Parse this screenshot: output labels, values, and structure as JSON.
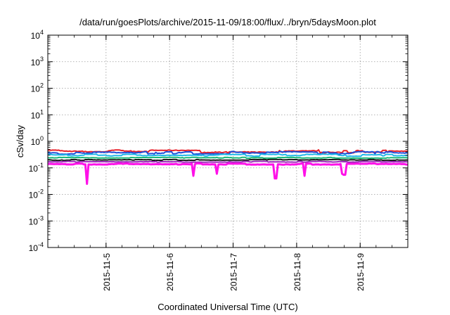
{
  "chart_data": {
    "type": "line",
    "title": "/data/run/goesPlots/archive/2015-11-09/18:00/flux/../bryn/5daysMoon.plot",
    "xlabel": "Coordinated Universal Time (UTC)",
    "ylabel": "cSv/day",
    "x_range": [
      "2015-11-04 02:00",
      "2015-11-09 18:00"
    ],
    "x_ticks": [
      "2015-11-5",
      "2015-11-6",
      "2015-11-7",
      "2015-11-8",
      "2015-11-9"
    ],
    "y_scale": "log",
    "ylim": [
      0.0001,
      10000
    ],
    "y_ticks": [
      {
        "base": "10",
        "exp": "-4"
      },
      {
        "base": "10",
        "exp": "-3"
      },
      {
        "base": "10",
        "exp": "-2"
      },
      {
        "base": "10",
        "exp": "-1"
      },
      {
        "base": "10",
        "exp": "0"
      },
      {
        "base": "10",
        "exp": "1"
      },
      {
        "base": "10",
        "exp": "2"
      },
      {
        "base": "10",
        "exp": "3"
      },
      {
        "base": "10",
        "exp": "4"
      }
    ],
    "grid": true,
    "series": [
      {
        "color": "#e8202a",
        "level": 0.42,
        "var": 0.12,
        "dips": [],
        "width": 2
      },
      {
        "color": "#1f4fd8",
        "level": 0.37,
        "var": 0.11,
        "dips": [],
        "width": 2
      },
      {
        "color": "#20b8e8",
        "level": 0.3,
        "var": 0.08,
        "dips": [],
        "width": 2
      },
      {
        "color": "#18b878",
        "level": 0.24,
        "var": 0.04,
        "dips": [],
        "width": 2
      },
      {
        "color": "#1a1a1a",
        "level": 0.2,
        "var": 0.04,
        "dips": [],
        "width": 2
      },
      {
        "color": "#9a2ab8",
        "level": 0.17,
        "var": 0.04,
        "dips": [],
        "width": 2
      },
      {
        "color": "#ff10e8",
        "level": 0.14,
        "var": 0.05,
        "dips": [
          [
            "2015-11-04 17:00",
            0.025
          ],
          [
            "2015-11-06 09:00",
            0.05
          ],
          [
            "2015-11-06 18:00",
            0.06
          ],
          [
            "2015-11-07 16:00",
            0.04
          ],
          [
            "2015-11-08 03:00",
            0.05
          ],
          [
            "2015-11-08 17:00",
            0.06
          ],
          [
            "2015-11-08 18:00",
            0.055
          ]
        ],
        "width": 3
      }
    ]
  }
}
